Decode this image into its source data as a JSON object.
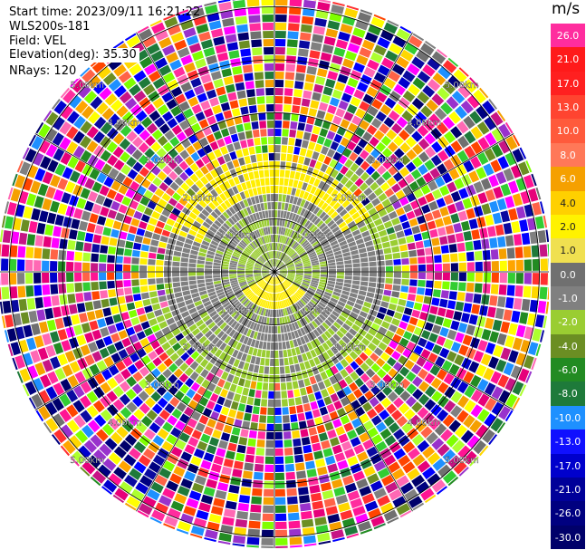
{
  "header": {
    "start_time": "Start time: 2023/09/11 16:21:22",
    "site": "WLS200s-181",
    "field": "Field: VEL",
    "elevation": "Elevation(deg): 35.30",
    "nrays": "NRays: 120"
  },
  "range_labels": [
    "1.00km",
    "2.00km",
    "3.00km",
    "4.00km",
    "5.00km"
  ],
  "colorbar": {
    "unit": "m/s",
    "ticks": [
      "26.0",
      "21.0",
      "17.0",
      "13.0",
      "10.0",
      "8.0",
      "6.0",
      "4.0",
      "2.0",
      "1.0",
      "0.0",
      "-1.0",
      "-2.0",
      "-4.0",
      "-6.0",
      "-8.0",
      "-10.0",
      "-13.0",
      "-17.0",
      "-21.0",
      "-26.0",
      "-30.0"
    ],
    "colors": [
      "#ff2d9e",
      "#ff1a1a",
      "#ff2020",
      "#ff4430",
      "#ff5a3c",
      "#ff7858",
      "#f5a000",
      "#ffd000",
      "#fff200",
      "#f0e050",
      "#707070",
      "#808080",
      "#9acd32",
      "#6b8e23",
      "#228b22",
      "#1e7a3a",
      "#1e90ff",
      "#1010ff",
      "#0000cc",
      "#000099",
      "#000080",
      "#00006a"
    ]
  }
}
